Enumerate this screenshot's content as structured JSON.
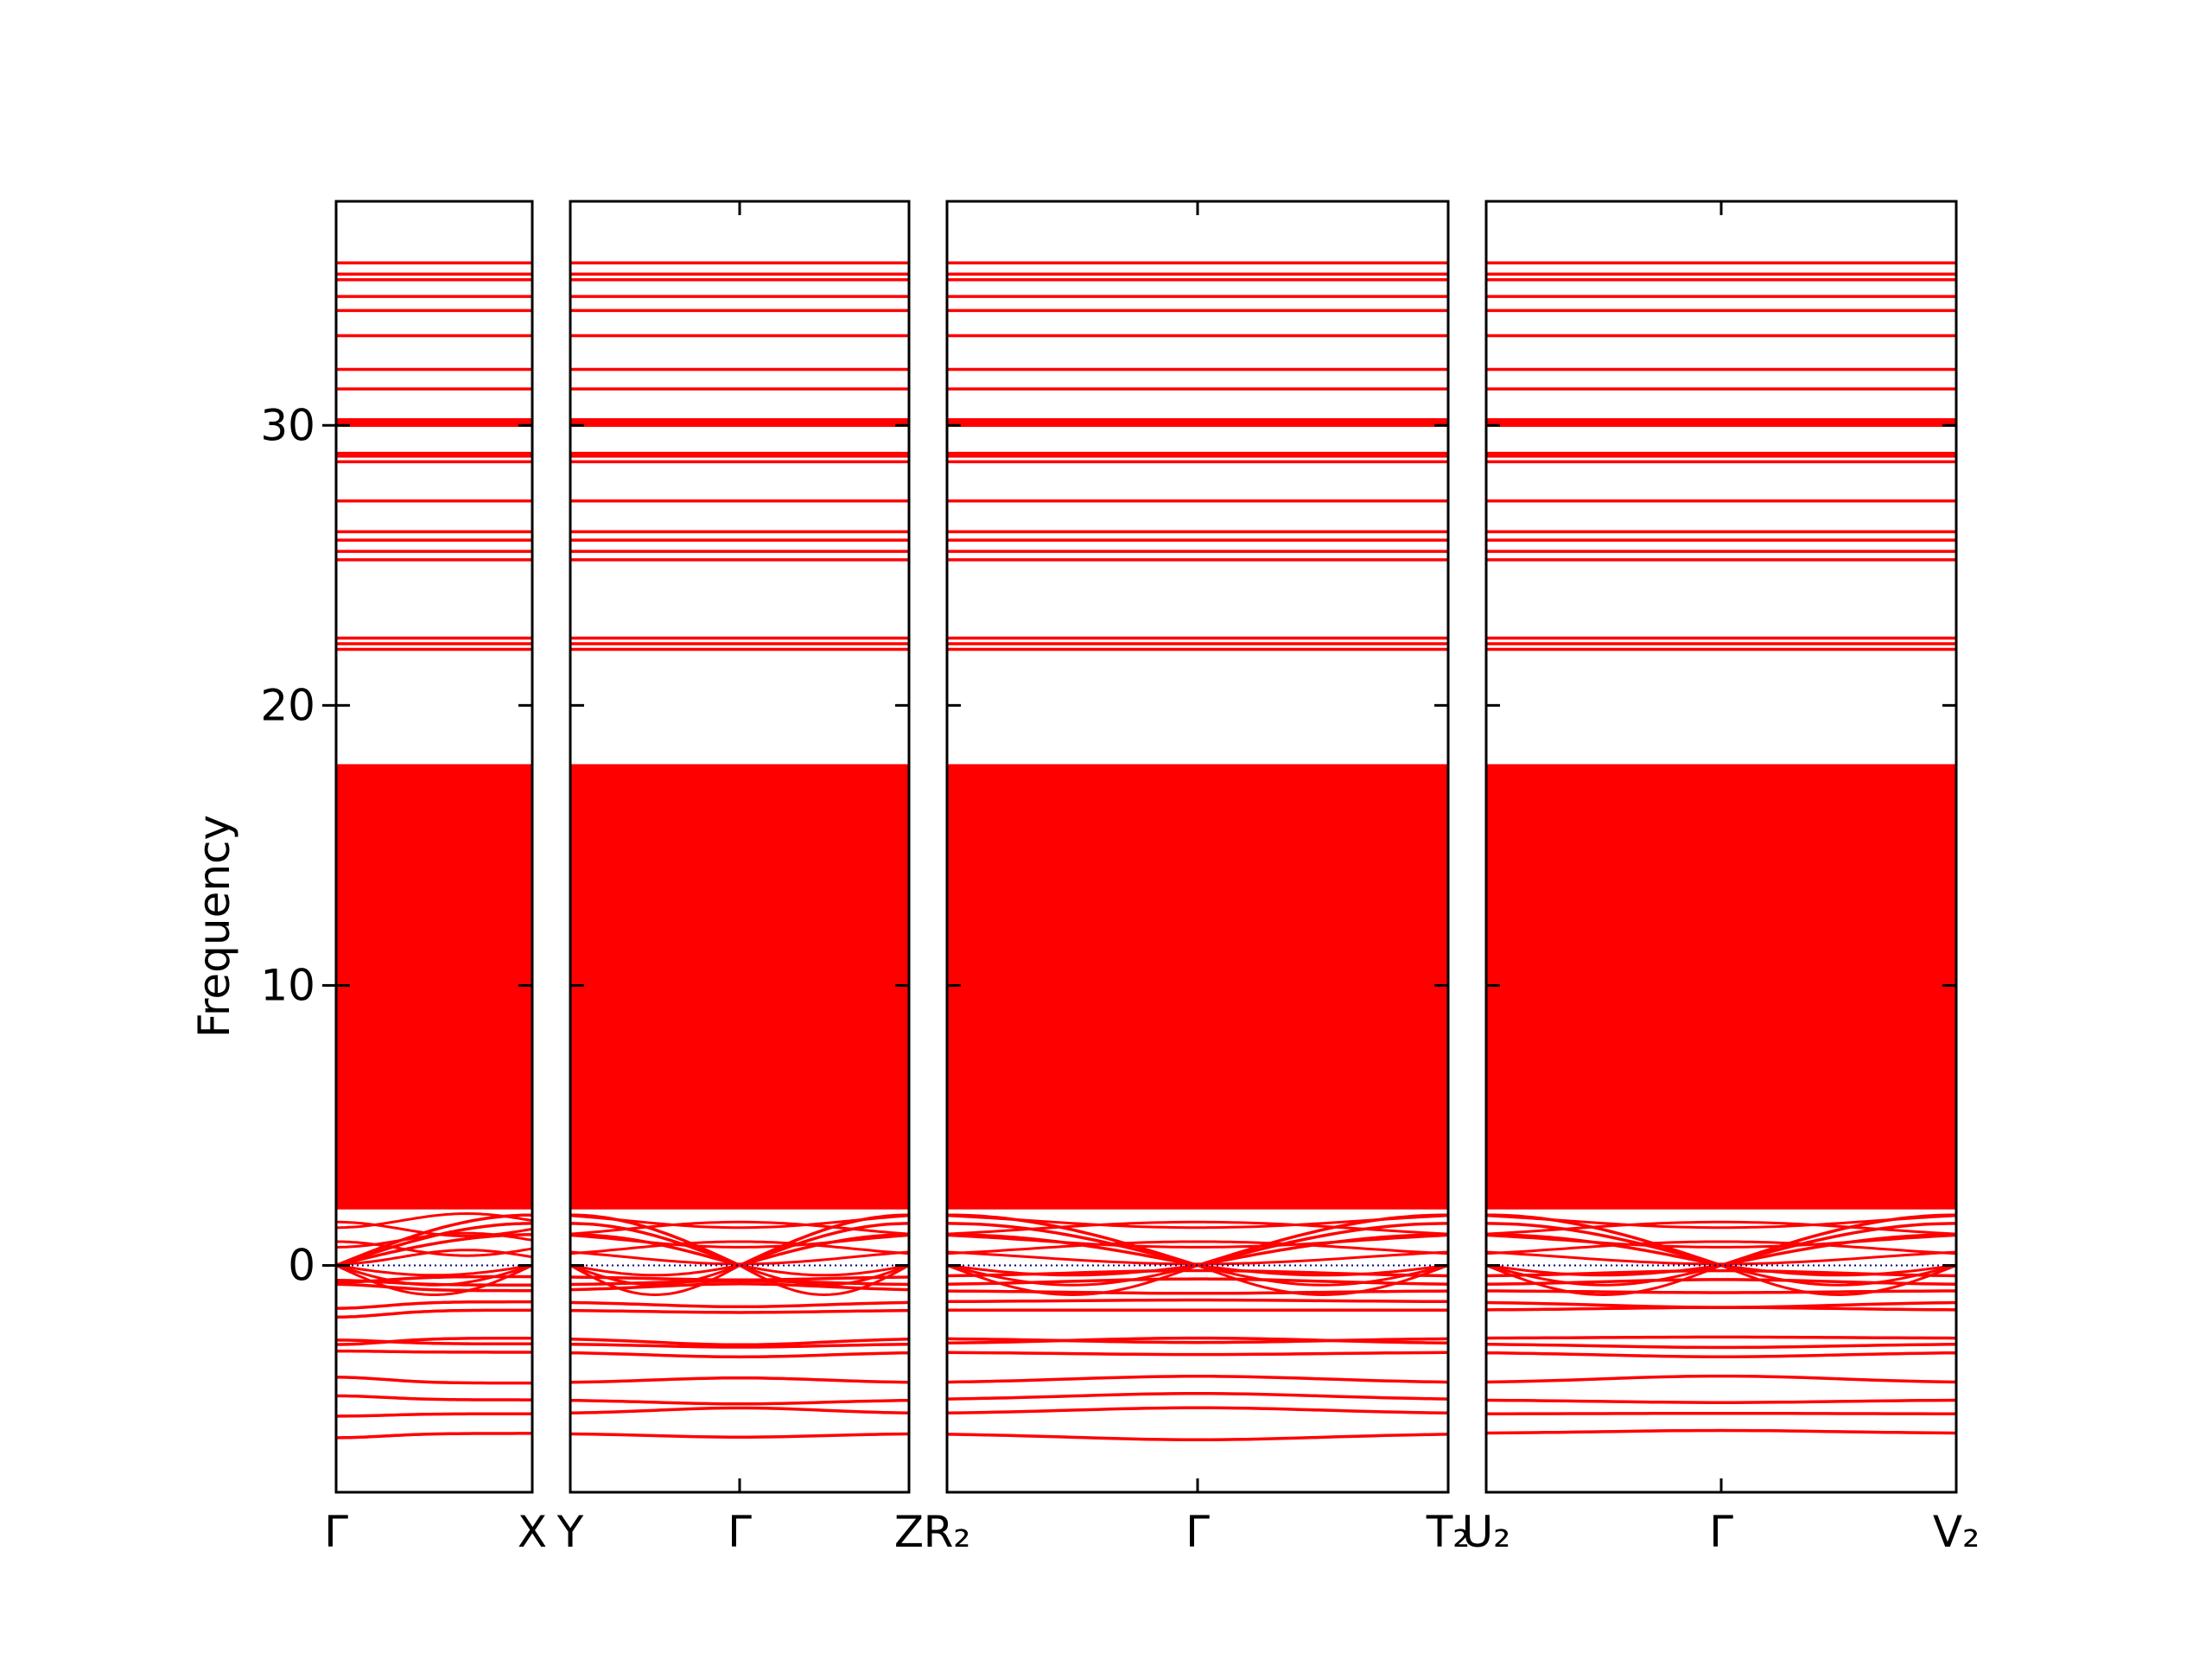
{
  "chart_data": {
    "type": "line",
    "title": "",
    "ylabel": "Frequency",
    "ylim": [
      -8.1,
      38
    ],
    "yticks": [
      0,
      10,
      20,
      30
    ],
    "grid": false,
    "colors": {
      "bands": "#ff0000",
      "zero_line": "#000080",
      "frame": "#000000"
    },
    "band_structure": {
      "dense_region": [
        2.0,
        17.9
      ],
      "high_modes": [
        22.0,
        22.2,
        22.4,
        25.2,
        25.5,
        25.9,
        26.2,
        27.3,
        28.7,
        28.9,
        29.0,
        30.0,
        30.1,
        30.2,
        31.3,
        32.0,
        33.2,
        34.1,
        34.6,
        35.2,
        35.4,
        35.8
      ],
      "low_modes": [
        -0.4,
        -0.7,
        -0.9,
        -1.3,
        -1.6,
        -2.6,
        -2.8,
        -3.1,
        -4.2,
        -4.8,
        -5.3,
        -6.0
      ],
      "acoustic_top_at_edges": [
        1.1,
        1.5,
        1.8
      ]
    },
    "panels": [
      {
        "tick_labels": [
          "Γ",
          "X"
        ]
      },
      {
        "tick_labels": [
          "Y",
          "Γ",
          "Z"
        ]
      },
      {
        "tick_labels": [
          "R₂",
          "Γ",
          "T₂"
        ]
      },
      {
        "tick_labels": [
          "U₂",
          "Γ",
          "V₂"
        ]
      }
    ]
  }
}
